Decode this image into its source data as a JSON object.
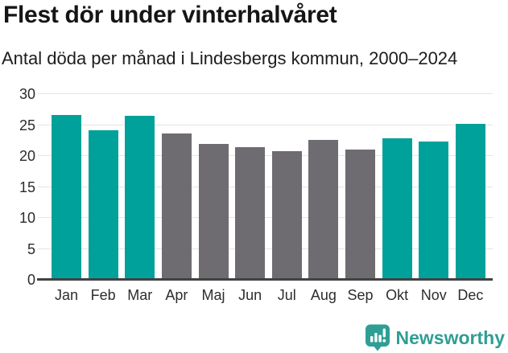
{
  "header": {
    "title": "Flest dör under vinterhalvåret",
    "subtitle": "Antal döda per månad i Lindesbergs kommun, 2000–2024"
  },
  "chart_data": {
    "type": "bar",
    "title": "Flest dör under vinterhalvåret",
    "subtitle": "Antal döda per månad i Lindesbergs kommun, 2000–2024",
    "categories": [
      "Jan",
      "Feb",
      "Mar",
      "Apr",
      "Maj",
      "Jun",
      "Jul",
      "Aug",
      "Sep",
      "Okt",
      "Nov",
      "Dec"
    ],
    "values": [
      26.6,
      24.2,
      26.5,
      23.6,
      21.9,
      21.4,
      20.8,
      22.6,
      21.1,
      22.8,
      22.4,
      25.2
    ],
    "bar_colors": [
      "teal",
      "teal",
      "teal",
      "gray",
      "gray",
      "gray",
      "gray",
      "gray",
      "gray",
      "teal",
      "teal",
      "teal"
    ],
    "colors": {
      "teal": "#00a19b",
      "gray": "#6e6b71"
    },
    "xlabel": "",
    "ylabel": "",
    "ylim": [
      0,
      30
    ],
    "yticks": [
      0,
      5,
      10,
      15,
      20,
      25,
      30
    ],
    "grid": true,
    "legend": false,
    "gridline_color": "#e4e4e4",
    "baseline_color": "#424242"
  },
  "footer": {
    "brand": "Newsworthy",
    "brand_color": "#2f9e94",
    "brand_icon": "speech-bubble-bar-chart-exclamation"
  }
}
